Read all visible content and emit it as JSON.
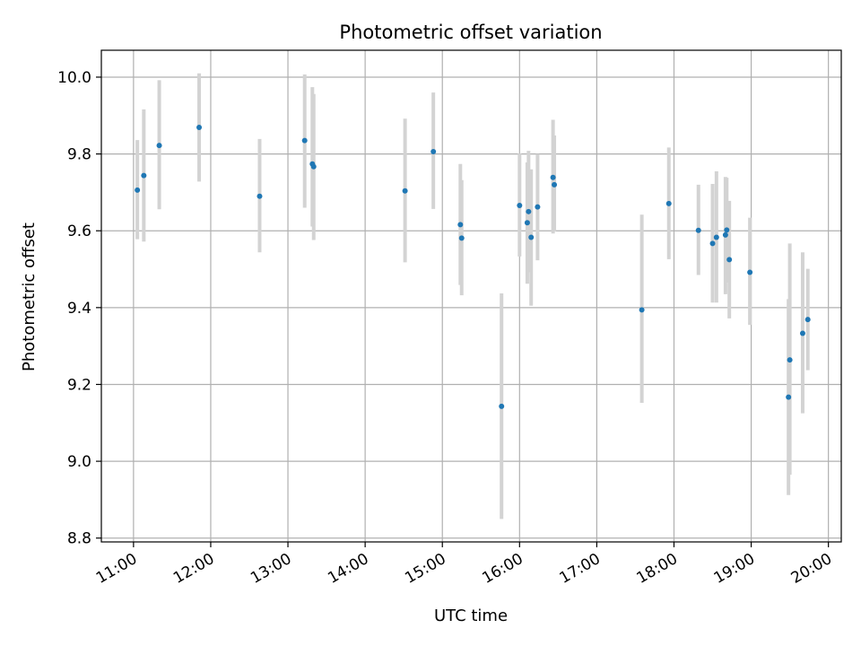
{
  "chart_data": {
    "type": "scatter",
    "title": "Photometric offset variation",
    "xlabel": "UTC time",
    "ylabel": "Photometric offset",
    "x_tick_labels": [
      "11:00",
      "12:00",
      "13:00",
      "14:00",
      "15:00",
      "16:00",
      "17:00",
      "18:00",
      "19:00",
      "20:00"
    ],
    "x_tick_values": [
      "11:00",
      "12:00",
      "13:00",
      "14:00",
      "15:00",
      "16:00",
      "17:00",
      "18:00",
      "19:00",
      "20:00"
    ],
    "y_ticks": [
      8.8,
      9.0,
      9.2,
      9.4,
      9.6,
      9.8,
      10.0
    ],
    "y_tick_labels": [
      "8.8",
      "9.0",
      "9.2",
      "9.4",
      "9.6",
      "9.8",
      "10.0"
    ],
    "xlim": [
      "10:35",
      "20:10"
    ],
    "ylim": [
      8.79,
      10.07
    ],
    "grid": true,
    "marker_color": "#1f77b4",
    "errorbar_color": "#d3d3d3",
    "points": [
      {
        "x": "11:03",
        "y": 9.706,
        "err_low": 9.578,
        "err_high": 9.836
      },
      {
        "x": "11:08",
        "y": 9.744,
        "err_low": 9.572,
        "err_high": 9.916
      },
      {
        "x": "11:20",
        "y": 9.822,
        "err_low": 9.656,
        "err_high": 9.992
      },
      {
        "x": "11:51",
        "y": 9.869,
        "err_low": 9.728,
        "err_high": 10.01
      },
      {
        "x": "12:38",
        "y": 9.69,
        "err_low": 9.544,
        "err_high": 9.839
      },
      {
        "x": "13:13",
        "y": 9.835,
        "err_low": 9.66,
        "err_high": 10.007
      },
      {
        "x": "13:19",
        "y": 9.774,
        "err_low": 9.611,
        "err_high": 9.974
      },
      {
        "x": "13:20",
        "y": 9.767,
        "err_low": 9.576,
        "err_high": 9.956
      },
      {
        "x": "14:31",
        "y": 9.704,
        "err_low": 9.518,
        "err_high": 9.892
      },
      {
        "x": "14:53",
        "y": 9.806,
        "err_low": 9.657,
        "err_high": 9.96
      },
      {
        "x": "15:14",
        "y": 9.616,
        "err_low": 9.459,
        "err_high": 9.774
      },
      {
        "x": "15:15",
        "y": 9.581,
        "err_low": 9.432,
        "err_high": 9.732
      },
      {
        "x": "15:46",
        "y": 9.143,
        "err_low": 8.85,
        "err_high": 9.437
      },
      {
        "x": "16:00",
        "y": 9.666,
        "err_low": 9.533,
        "err_high": 9.801
      },
      {
        "x": "16:06",
        "y": 9.621,
        "err_low": 9.462,
        "err_high": 9.778
      },
      {
        "x": "16:07",
        "y": 9.65,
        "err_low": 9.492,
        "err_high": 9.808
      },
      {
        "x": "16:09",
        "y": 9.583,
        "err_low": 9.405,
        "err_high": 9.76
      },
      {
        "x": "16:14",
        "y": 9.662,
        "err_low": 9.523,
        "err_high": 9.8
      },
      {
        "x": "16:26",
        "y": 9.739,
        "err_low": 9.593,
        "err_high": 9.889
      },
      {
        "x": "16:27",
        "y": 9.72,
        "err_low": 9.598,
        "err_high": 9.848
      },
      {
        "x": "17:35",
        "y": 9.394,
        "err_low": 9.152,
        "err_high": 9.642
      },
      {
        "x": "17:56",
        "y": 9.671,
        "err_low": 9.526,
        "err_high": 9.817
      },
      {
        "x": "18:19",
        "y": 9.601,
        "err_low": 9.485,
        "err_high": 9.72
      },
      {
        "x": "18:30",
        "y": 9.567,
        "err_low": 9.413,
        "err_high": 9.722
      },
      {
        "x": "18:33",
        "y": 9.583,
        "err_low": 9.413,
        "err_high": 9.755
      },
      {
        "x": "18:40",
        "y": 9.589,
        "err_low": 9.435,
        "err_high": 9.74
      },
      {
        "x": "18:41",
        "y": 9.602,
        "err_low": 9.465,
        "err_high": 9.738
      },
      {
        "x": "18:43",
        "y": 9.525,
        "err_low": 9.372,
        "err_high": 9.678
      },
      {
        "x": "18:59",
        "y": 9.492,
        "err_low": 9.355,
        "err_high": 9.634
      },
      {
        "x": "19:29",
        "y": 9.167,
        "err_low": 8.912,
        "err_high": 9.422
      },
      {
        "x": "19:30",
        "y": 9.264,
        "err_low": 8.965,
        "err_high": 9.567
      },
      {
        "x": "19:40",
        "y": 9.333,
        "err_low": 9.125,
        "err_high": 9.544
      },
      {
        "x": "19:44",
        "y": 9.369,
        "err_low": 9.237,
        "err_high": 9.501
      }
    ]
  }
}
